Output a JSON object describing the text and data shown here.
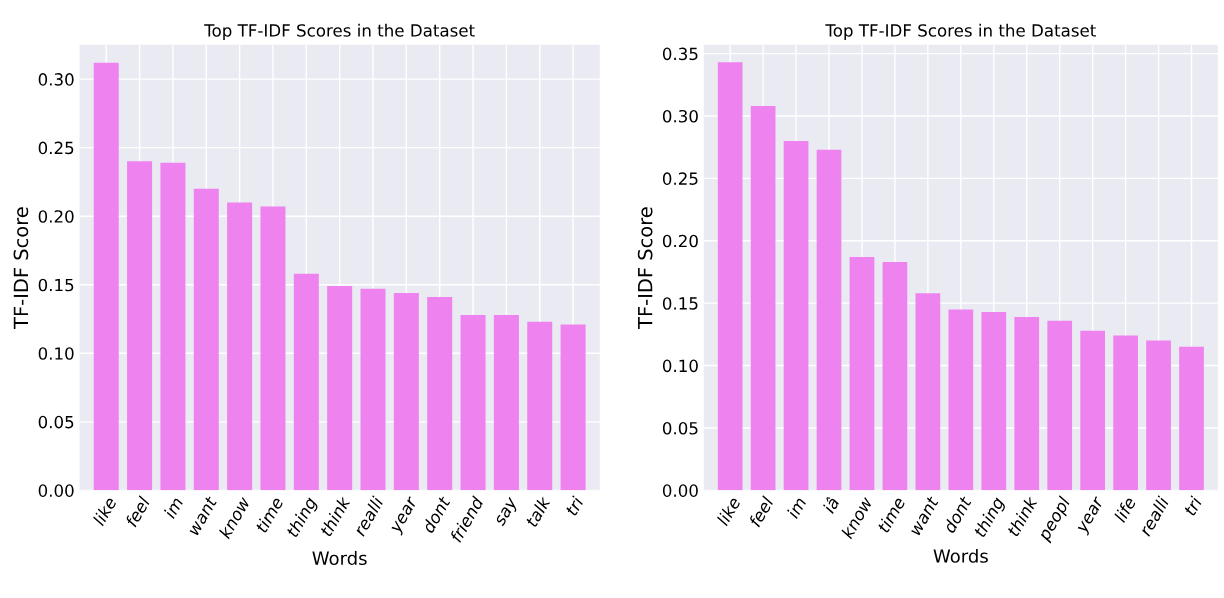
{
  "chart_data": [
    {
      "type": "bar",
      "title": "Top TF-IDF Scores in the Dataset",
      "xlabel": "Words",
      "ylabel": "TF-IDF Score",
      "categories": [
        "like",
        "feel",
        "im",
        "want",
        "know",
        "time",
        "thing",
        "think",
        "realli",
        "year",
        "dont",
        "friend",
        "say",
        "talk",
        "tri"
      ],
      "values": [
        0.312,
        0.24,
        0.239,
        0.22,
        0.21,
        0.207,
        0.158,
        0.149,
        0.147,
        0.144,
        0.141,
        0.128,
        0.128,
        0.123,
        0.121
      ],
      "color": "#ee82ee",
      "ylim": [
        0,
        0.325
      ],
      "yticks": [
        {
          "value": 0,
          "label": "0.00"
        },
        {
          "value": 0.05,
          "label": "0.05"
        },
        {
          "value": 0.1,
          "label": "0.10"
        },
        {
          "value": 0.15,
          "label": "0.15"
        },
        {
          "value": 0.2,
          "label": "0.20"
        },
        {
          "value": 0.25,
          "label": "0.25"
        },
        {
          "value": 0.3,
          "label": "0.30"
        }
      ],
      "grid": true
    },
    {
      "type": "bar",
      "title": "Top TF-IDF Scores in the Dataset",
      "xlabel": "Words",
      "ylabel": "TF-IDF Score",
      "categories": [
        "like",
        "feel",
        "im",
        "iâ",
        "know",
        "time",
        "want",
        "dont",
        "thing",
        "think",
        "peopl",
        "year",
        "life",
        "realli",
        "tri"
      ],
      "values": [
        0.343,
        0.308,
        0.28,
        0.273,
        0.187,
        0.183,
        0.158,
        0.145,
        0.143,
        0.139,
        0.136,
        0.128,
        0.124,
        0.12,
        0.115
      ],
      "color": "#ee82ee",
      "ylim": [
        0,
        0.357
      ],
      "yticks": [
        {
          "value": 0,
          "label": "0.00"
        },
        {
          "value": 0.05,
          "label": "0.05"
        },
        {
          "value": 0.1,
          "label": "0.10"
        },
        {
          "value": 0.15,
          "label": "0.15"
        },
        {
          "value": 0.2,
          "label": "0.20"
        },
        {
          "value": 0.25,
          "label": "0.25"
        },
        {
          "value": 0.3,
          "label": "0.30"
        },
        {
          "value": 0.35,
          "label": "0.35"
        }
      ],
      "grid": true
    }
  ]
}
